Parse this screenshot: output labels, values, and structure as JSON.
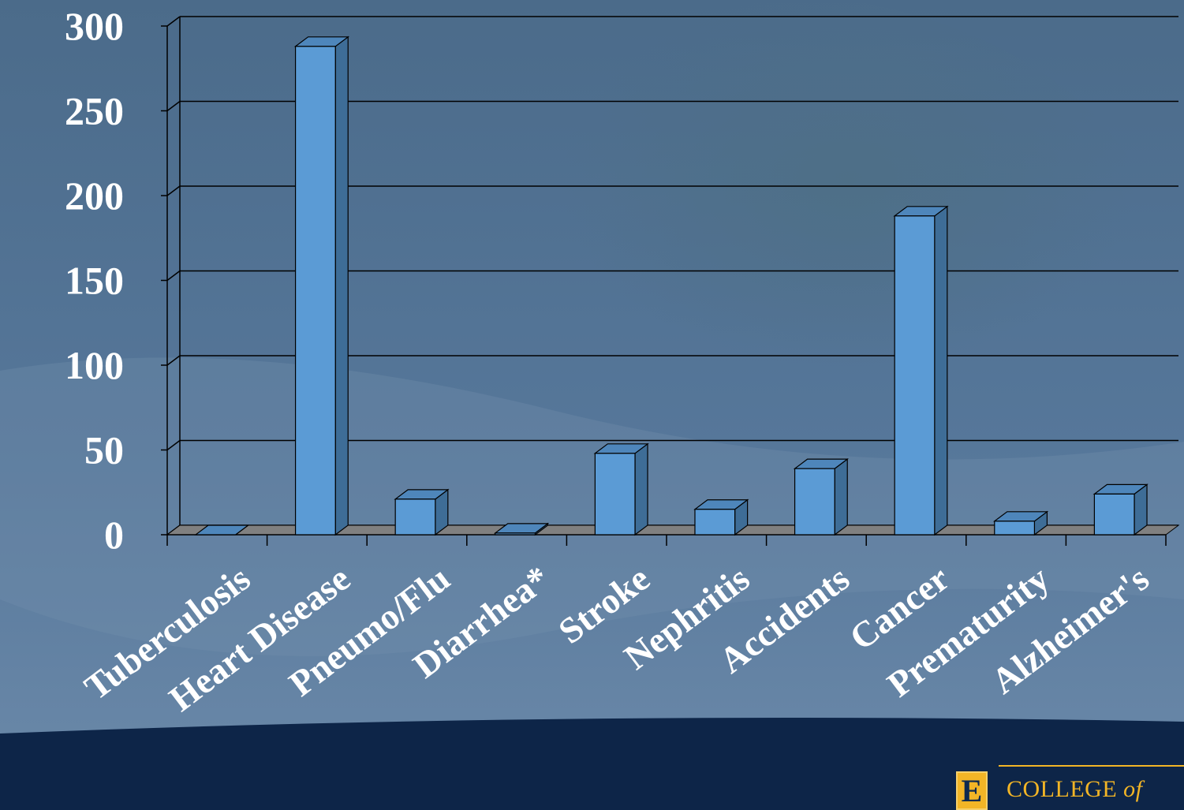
{
  "chart_data": {
    "type": "bar",
    "categories": [
      "Tuberculosis",
      "Heart Disease",
      "Pneumo/Flu",
      "Diarrhea*",
      "Stroke",
      "Nephritis",
      "Accidents",
      "Cancer",
      "Prematurity",
      "Alzheimer's"
    ],
    "values": [
      0,
      288,
      21,
      1,
      48,
      15,
      39,
      188,
      8,
      24
    ],
    "ylim": [
      0,
      300
    ],
    "yticks": [
      0,
      50,
      100,
      150,
      200,
      250,
      300
    ],
    "grid": true,
    "legend": "none",
    "colors": {
      "bar_front": "#5b9bd5",
      "bar_side": "#3e6d97",
      "bar_top": "#4e86bb",
      "floor": "#808080"
    }
  },
  "logo": {
    "mark": "E",
    "text_main": "COLLEGE",
    "text_of": "of"
  },
  "colors": {
    "footer": "#0d2548",
    "accent": "#f2b526"
  }
}
